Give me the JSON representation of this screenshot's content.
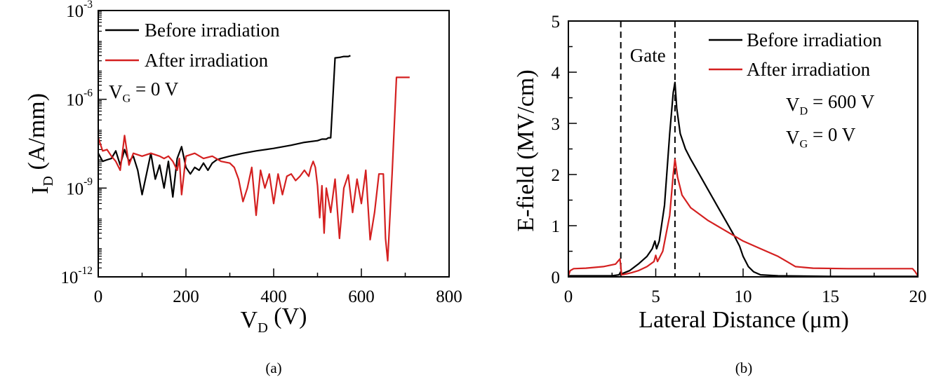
{
  "colors": {
    "before": "#000000",
    "after": "#d42020"
  },
  "chart_data": [
    {
      "type": "line",
      "caption": "(a)",
      "xlabel": {
        "main": "V",
        "sub": "D",
        "rest": " (V)"
      },
      "ylabel": {
        "main": "I",
        "sub": "D",
        "rest": " (A/mm)"
      },
      "xlim": [
        0,
        800
      ],
      "xticks": [
        "0",
        "200",
        "400",
        "600",
        "800"
      ],
      "ylim_log10": [
        -12,
        -3
      ],
      "yscale": "log",
      "yticks": [
        {
          "base": "10",
          "exp": "-3"
        },
        {
          "base": "10",
          "exp": "-6"
        },
        {
          "base": "10",
          "exp": "-9"
        },
        {
          "base": "10",
          "exp": "-12"
        }
      ],
      "annotation": {
        "main": "V",
        "sub": "G",
        "rest": " = 0 V"
      },
      "legend_position": "top-left",
      "series": [
        {
          "name": "Before irradiation",
          "color_key": "before",
          "x": [
            0,
            10,
            20,
            30,
            40,
            50,
            60,
            70,
            80,
            90,
            100,
            110,
            120,
            130,
            140,
            150,
            160,
            170,
            180,
            190,
            200,
            210,
            220,
            230,
            240,
            250,
            260,
            270,
            280,
            300,
            330,
            360,
            400,
            440,
            470,
            500,
            510,
            520,
            525,
            530,
            540,
            550,
            560,
            570,
            575
          ],
          "y": [
            1.5e-08,
            8e-09,
            9e-09,
            1e-08,
            1.8e-08,
            6e-09,
            2e-08,
            8e-09,
            1.2e-08,
            4e-09,
            6e-10,
            3e-09,
            1.5e-08,
            2e-09,
            6e-09,
            1e-09,
            8e-09,
            5e-10,
            1e-08,
            2.5e-08,
            5e-09,
            3e-09,
            5e-09,
            4e-09,
            7e-09,
            4e-09,
            7e-09,
            9e-09,
            1e-08,
            1.2e-08,
            1.5e-08,
            1.8e-08,
            2.2e-08,
            2.8e-08,
            3.5e-08,
            4e-08,
            4.5e-08,
            4.5e-08,
            5e-08,
            5e-08,
            2.5e-05,
            2.6e-05,
            2.8e-05,
            2.8e-05,
            3e-05
          ]
        },
        {
          "name": "After irradiation",
          "color_key": "after",
          "x": [
            0,
            10,
            20,
            30,
            40,
            50,
            55,
            60,
            70,
            80,
            100,
            120,
            140,
            150,
            160,
            170,
            180,
            185,
            190,
            200,
            220,
            240,
            260,
            280,
            300,
            310,
            320,
            330,
            340,
            350,
            360,
            370,
            380,
            390,
            400,
            410,
            420,
            430,
            440,
            450,
            460,
            470,
            480,
            485,
            490,
            495,
            500,
            505,
            510,
            515,
            520,
            530,
            540,
            550,
            560,
            570,
            580,
            590,
            600,
            610,
            620,
            630,
            640,
            650,
            655,
            660,
            670,
            680,
            690,
            700,
            710
          ],
          "y": [
            5e-08,
            1.8e-08,
            2e-08,
            1.2e-08,
            8e-09,
            4e-09,
            1.5e-08,
            6e-08,
            6e-09,
            1.5e-08,
            1.2e-08,
            1.5e-08,
            1.2e-08,
            1e-08,
            1.2e-08,
            8e-09,
            4e-09,
            1e-08,
            6e-10,
            1.2e-08,
            1.5e-08,
            1e-08,
            1.2e-08,
            8e-09,
            7e-09,
            5e-09,
            2e-09,
            3.5e-10,
            1e-09,
            5e-09,
            1.2e-10,
            4e-09,
            1e-09,
            3e-09,
            3e-10,
            3e-09,
            6e-10,
            2.5e-09,
            3e-09,
            1.8e-09,
            2.5e-09,
            4e-09,
            2.5e-09,
            5e-09,
            8e-09,
            5e-09,
            1.2e-09,
            1e-10,
            1.2e-09,
            3e-11,
            1e-09,
            1.5e-10,
            2e-09,
            2e-11,
            1e-09,
            2.8e-09,
            1.5e-10,
            2e-09,
            3e-10,
            4e-09,
            1.8e-11,
            1.5e-10,
            3e-09,
            3e-09,
            2e-11,
            3.5e-12,
            3e-09,
            5.5e-06,
            5.5e-06,
            5.5e-06,
            5.5e-06
          ]
        }
      ]
    },
    {
      "type": "line",
      "caption": "(b)",
      "xlabel": "Lateral Distance (μm)",
      "ylabel": "E-field (MV/cm)",
      "xlim": [
        0,
        20
      ],
      "ylim": [
        0,
        5
      ],
      "xticks": [
        "0",
        "5",
        "10",
        "15",
        "20"
      ],
      "yticks": [
        "0",
        "1",
        "2",
        "3",
        "4",
        "5"
      ],
      "gate_label": "Gate",
      "gate_lines_x": [
        3,
        6.1
      ],
      "annotations": [
        {
          "main": "V",
          "sub": "D",
          "rest": " = 600 V"
        },
        {
          "main": "V",
          "sub": "G",
          "rest": " = 0 V"
        }
      ],
      "legend_position": "top-right",
      "series": [
        {
          "name": "Before irradiation",
          "color_key": "before",
          "x": [
            0,
            2.5,
            2.9,
            3.0,
            3.05,
            3.2,
            3.5,
            4.0,
            4.5,
            4.8,
            4.95,
            5.05,
            5.2,
            5.5,
            5.8,
            6.0,
            6.1,
            6.2,
            6.4,
            6.7,
            7.0,
            7.5,
            8.0,
            8.5,
            9.0,
            9.5,
            9.8,
            10.0,
            10.3,
            10.6,
            11.0,
            12.0,
            15.0,
            20.0
          ],
          "y": [
            0.02,
            0.02,
            0.04,
            0.1,
            0.06,
            0.08,
            0.12,
            0.25,
            0.4,
            0.55,
            0.7,
            0.55,
            0.7,
            1.4,
            2.8,
            3.6,
            3.8,
            3.3,
            2.8,
            2.5,
            2.3,
            2.0,
            1.7,
            1.4,
            1.1,
            0.8,
            0.6,
            0.4,
            0.2,
            0.1,
            0.04,
            0.02,
            0.01,
            0.01
          ]
        },
        {
          "name": "After irradiation",
          "color_key": "after",
          "x": [
            0,
            0.1,
            0.3,
            1.0,
            2.0,
            2.7,
            2.95,
            3.05,
            3.2,
            3.6,
            4.0,
            4.5,
            4.9,
            5.0,
            5.1,
            5.4,
            5.8,
            6.0,
            6.1,
            6.25,
            6.5,
            7.0,
            8.0,
            9.0,
            10.0,
            11.0,
            12.0,
            12.5,
            13.0,
            14.0,
            16.0,
            19.7,
            19.85,
            20.0
          ],
          "y": [
            0.02,
            0.12,
            0.16,
            0.17,
            0.2,
            0.25,
            0.35,
            0.04,
            0.05,
            0.08,
            0.12,
            0.2,
            0.3,
            0.42,
            0.3,
            0.5,
            1.2,
            2.0,
            2.3,
            1.95,
            1.6,
            1.35,
            1.1,
            0.9,
            0.7,
            0.55,
            0.4,
            0.3,
            0.2,
            0.17,
            0.16,
            0.16,
            0.1,
            0.02
          ]
        }
      ]
    }
  ]
}
